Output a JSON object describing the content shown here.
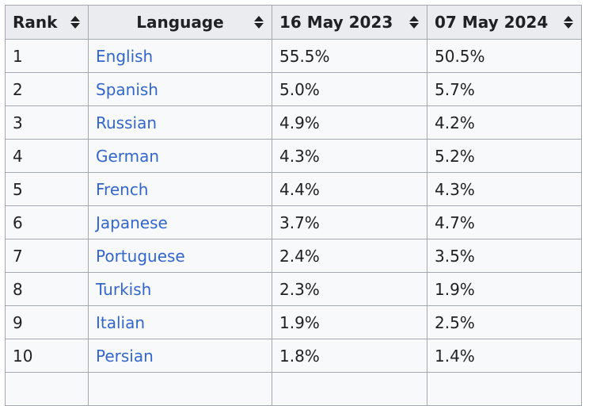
{
  "table": {
    "headers": [
      {
        "label": "Rank",
        "sort_icon": "sort-icon"
      },
      {
        "label": "Language",
        "sort_icon": "sort-icon"
      },
      {
        "label": "16 May 2023",
        "sort_icon": "sort-icon"
      },
      {
        "label": "07 May 2024",
        "sort_icon": "sort-icon"
      }
    ],
    "rows": [
      {
        "rank": "1",
        "language": "English",
        "y2023": "55.5%",
        "y2024": "50.5%"
      },
      {
        "rank": "2",
        "language": "Spanish",
        "y2023": "5.0%",
        "y2024": "5.7%"
      },
      {
        "rank": "3",
        "language": "Russian",
        "y2023": "4.9%",
        "y2024": "4.2%"
      },
      {
        "rank": "4",
        "language": "German",
        "y2023": "4.3%",
        "y2024": "5.2%"
      },
      {
        "rank": "5",
        "language": "French",
        "y2023": "4.4%",
        "y2024": "4.3%"
      },
      {
        "rank": "6",
        "language": "Japanese",
        "y2023": "3.7%",
        "y2024": "4.7%"
      },
      {
        "rank": "7",
        "language": "Portuguese",
        "y2023": "2.4%",
        "y2024": "3.5%"
      },
      {
        "rank": "8",
        "language": "Turkish",
        "y2023": "2.3%",
        "y2024": "1.9%"
      },
      {
        "rank": "9",
        "language": "Italian",
        "y2023": "1.9%",
        "y2024": "2.5%"
      },
      {
        "rank": "10",
        "language": "Persian",
        "y2023": "1.8%",
        "y2024": "1.4%"
      },
      {
        "rank": "",
        "language": "",
        "y2023": "",
        "y2024": ""
      }
    ],
    "colors": {
      "header_bg": "#eaecf0",
      "cell_bg": "#f8f9fa",
      "border": "#a2a9b1",
      "link": "#3366cc",
      "text": "#202122"
    }
  }
}
